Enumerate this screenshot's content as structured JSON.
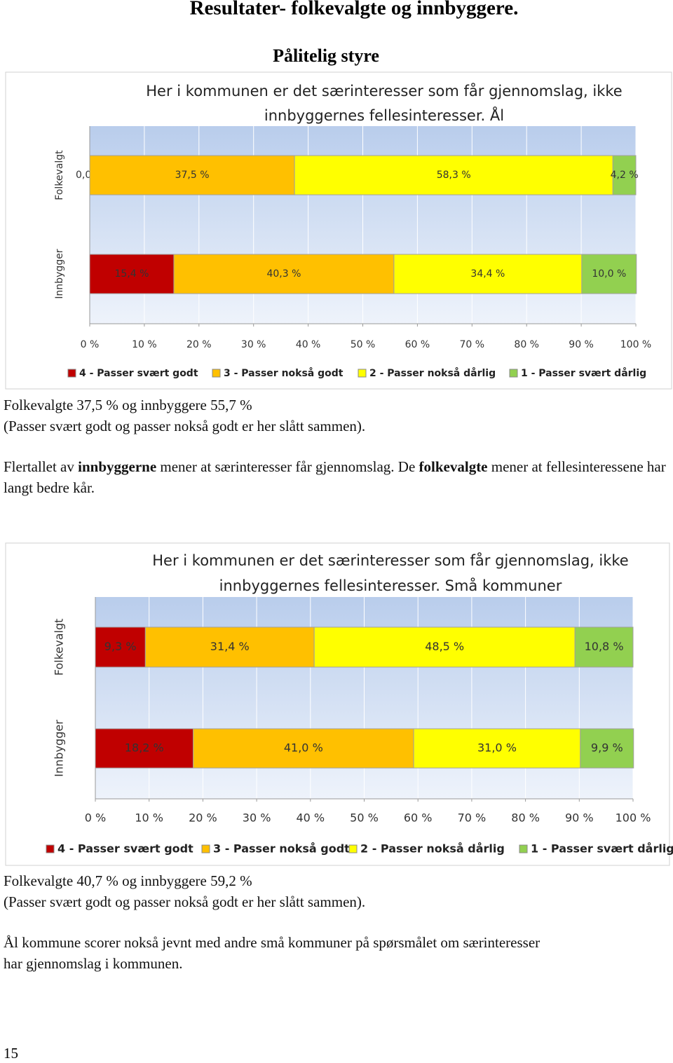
{
  "header": {
    "title": "Resultater- folkevalgte og innbyggere.",
    "section": "Pålitelig styre"
  },
  "chart_data": [
    {
      "type": "bar",
      "orientation": "horizontal",
      "stacked": true,
      "title": [
        "Her i kommunen er det særinteresser som får gjennomslag, ikke",
        "innbyggernes fellesinteresser. Ål"
      ],
      "categories": [
        "Folkevalgt",
        "Innbygger"
      ],
      "series": [
        {
          "name": "4 - Passer svært godt",
          "color": "#c00000",
          "values": [
            0.0,
            15.4
          ],
          "value_labels": [
            "0,0 %",
            "15,4 %"
          ]
        },
        {
          "name": "3 - Passer nokså godt",
          "color": "#ffc000",
          "values": [
            37.5,
            40.3
          ],
          "value_labels": [
            "37,5 %",
            "40,3 %"
          ]
        },
        {
          "name": "2 - Passer nokså dårlig",
          "color": "#ffff00",
          "values": [
            58.3,
            34.4
          ],
          "value_labels": [
            "58,3 %",
            "34,4 %"
          ]
        },
        {
          "name": "1 - Passer svært dårlig",
          "color": "#92d050",
          "values": [
            4.2,
            10.0
          ],
          "value_labels": [
            "4,2 %",
            "10,0 %"
          ]
        }
      ],
      "xlim": [
        0,
        100
      ],
      "xticks": [
        {
          "value": 0,
          "label": "0 %"
        },
        {
          "value": 10,
          "label": "10 %"
        },
        {
          "value": 20,
          "label": "20 %"
        },
        {
          "value": 30,
          "label": "30 %"
        },
        {
          "value": 40,
          "label": "40 %"
        },
        {
          "value": 50,
          "label": "50 %"
        },
        {
          "value": 60,
          "label": "60 %"
        },
        {
          "value": 70,
          "label": "70 %"
        },
        {
          "value": 80,
          "label": "80 %"
        },
        {
          "value": 90,
          "label": "90 %"
        },
        {
          "value": 100,
          "label": "100 %"
        }
      ],
      "grid": true,
      "legend": "bottom"
    },
    {
      "type": "bar",
      "orientation": "horizontal",
      "stacked": true,
      "title": [
        "Her i kommunen er det særinteresser som får gjennomslag, ikke",
        "innbyggernes fellesinteresser. Små kommuner"
      ],
      "categories": [
        "Folkevalgt",
        "Innbygger"
      ],
      "series": [
        {
          "name": "4 - Passer svært godt",
          "color": "#c00000",
          "values": [
            9.3,
            18.2
          ],
          "value_labels": [
            "9,3 %",
            "18,2 %"
          ]
        },
        {
          "name": "3 - Passer nokså godt",
          "color": "#ffc000",
          "values": [
            31.4,
            41.0
          ],
          "value_labels": [
            "31,4 %",
            "41,0 %"
          ]
        },
        {
          "name": "2 - Passer nokså dårlig",
          "color": "#ffff00",
          "values": [
            48.5,
            31.0
          ],
          "value_labels": [
            "48,5 %",
            "31,0 %"
          ]
        },
        {
          "name": "1 - Passer svært dårlig",
          "color": "#92d050",
          "values": [
            10.8,
            9.9
          ],
          "value_labels": [
            "10,8 %",
            "9,9 %"
          ]
        }
      ],
      "xlim": [
        0,
        100
      ],
      "xticks": [
        {
          "value": 0,
          "label": "0 %"
        },
        {
          "value": 10,
          "label": "10 %"
        },
        {
          "value": 20,
          "label": "20 %"
        },
        {
          "value": 30,
          "label": "30 %"
        },
        {
          "value": 40,
          "label": "40 %"
        },
        {
          "value": 50,
          "label": "50 %"
        },
        {
          "value": 60,
          "label": "60 %"
        },
        {
          "value": 70,
          "label": "70 %"
        },
        {
          "value": 80,
          "label": "80 %"
        },
        {
          "value": 90,
          "label": "90 %"
        },
        {
          "value": 100,
          "label": "100 %"
        }
      ],
      "grid": true,
      "legend": "bottom"
    }
  ],
  "paragraphs": [
    {
      "lines": [
        "Folkevalgte 37,5 % og innbyggere 55,7 %",
        "(Passer svært godt og passer nokså godt er her slått sammen)."
      ]
    },
    {
      "runs": [
        {
          "text": "Flertallet av ",
          "bold": false
        },
        {
          "text": "innbyggerne",
          "bold": true
        },
        {
          "text": " mener at særinteresser får gjennomslag. De ",
          "bold": false
        },
        {
          "text": "folkevalgte",
          "bold": true
        },
        {
          "text": " mener at fellesinteressene har langt bedre kår.",
          "bold": false
        }
      ]
    },
    {
      "lines": [
        "Folkevalgte 40,7 % og innbyggere 59,2 %",
        "(Passer svært godt og passer nokså godt er her slått sammen)."
      ]
    },
    {
      "lines": [
        "Ål kommune scorer nokså jevnt med andre små kommuner på spørsmålet om særinteresser",
        "har gjennomslag i kommunen."
      ]
    }
  ],
  "page_number": "15"
}
